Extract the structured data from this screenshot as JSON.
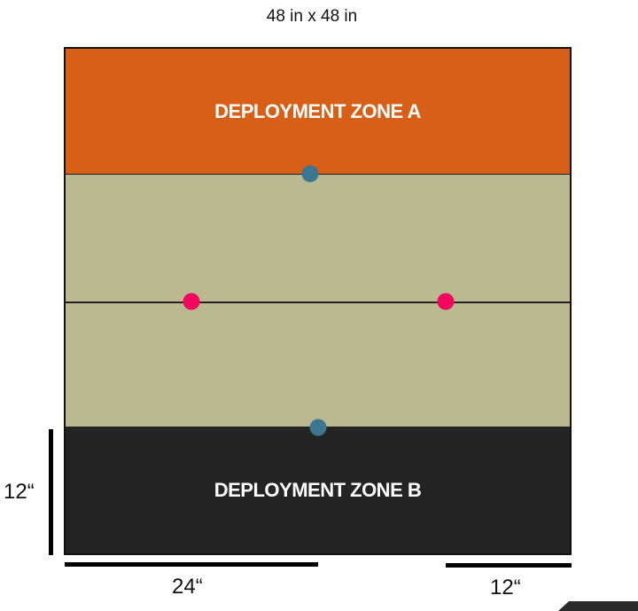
{
  "title": "48 in x 48 in",
  "zones": {
    "a_label": "DEPLOYMENT ZONE A",
    "b_label": "DEPLOYMENT ZONE B"
  },
  "measurements": {
    "vertical_label": "12“",
    "horizontal_left_label": "24“",
    "horizontal_right_label": "12“"
  },
  "objectives": {
    "blue_color": "#3d7691",
    "pink_color": "#f2065f"
  },
  "colors": {
    "zone_a": "#d75f17",
    "zone_b": "#242424",
    "no_mans_land": "#bab98f"
  }
}
